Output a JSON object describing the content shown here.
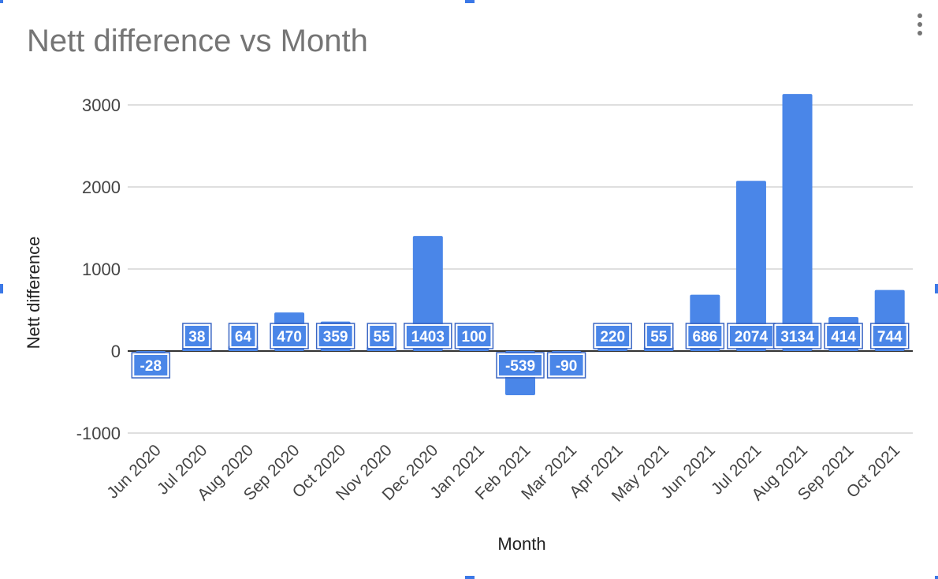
{
  "chart_data": {
    "type": "bar",
    "title": "Nett difference vs Month",
    "xlabel": "Month",
    "ylabel": "Nett difference",
    "categories": [
      "Jun 2020",
      "Jul 2020",
      "Aug 2020",
      "Sep 2020",
      "Oct 2020",
      "Nov 2020",
      "Dec 2020",
      "Jan 2021",
      "Feb 2021",
      "Mar 2021",
      "Apr 2021",
      "May 2021",
      "Jun 2021",
      "Jul 2021",
      "Aug 2021",
      "Sep 2021",
      "Oct 2021"
    ],
    "values": [
      -28,
      38,
      64,
      470,
      359,
      55,
      1403,
      100,
      -539,
      -90,
      220,
      55,
      686,
      2074,
      3134,
      414,
      744
    ],
    "yticks": [
      -1000,
      0,
      1000,
      2000,
      3000
    ],
    "ylim": [
      -1000,
      3000
    ],
    "grid": true,
    "legend": "none",
    "bar_color": "#4a86e8"
  },
  "menu": {
    "icon": "more-vert-icon"
  }
}
